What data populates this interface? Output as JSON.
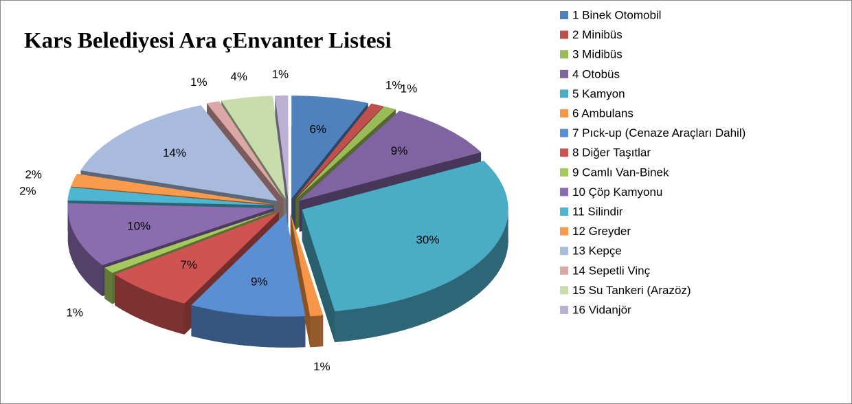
{
  "chart_data": {
    "type": "pie3d",
    "title": "Kars Belediyesi Ara çEnvanter Listesi",
    "categories": [
      "1 Binek Otomobil",
      "2 Minibüs",
      "3 Midibüs",
      "4 Otobüs",
      "5 Kamyon",
      "6 Ambulans",
      "7 Pıck-up (Cenaze Araçları Dahil)",
      "8 Diğer Taşıtlar",
      "9 Camlı Van-Binek",
      "10 Çöp Kamyonu",
      "11 Silindir",
      "12 Greyder",
      "13 Kepçe",
      "14 Sepetli Vinç",
      "15 Su Tankeri (Arazöz)",
      "16 Vidanjör"
    ],
    "values": [
      6,
      1,
      1,
      9,
      30,
      1,
      9,
      7,
      1,
      10,
      2,
      2,
      14,
      1,
      4,
      1
    ],
    "value_labels": [
      "6%",
      "1%",
      "1%",
      "9%",
      "30%",
      "1%",
      "9%",
      "7%",
      "1%",
      "10%",
      "2%",
      "2%",
      "14%",
      "1%",
      "4%",
      "1%"
    ],
    "colors": [
      "#4f81bd",
      "#c0504d",
      "#9bbb59",
      "#8064a2",
      "#4bacc6",
      "#f79646",
      "#5b8fd4",
      "#cf5451",
      "#a5c85f",
      "#8a6caf",
      "#4fb6d2",
      "#f99b4c",
      "#a8bbdc",
      "#dca8a6",
      "#c9dcac",
      "#bcb1d3"
    ],
    "legend": "right"
  }
}
